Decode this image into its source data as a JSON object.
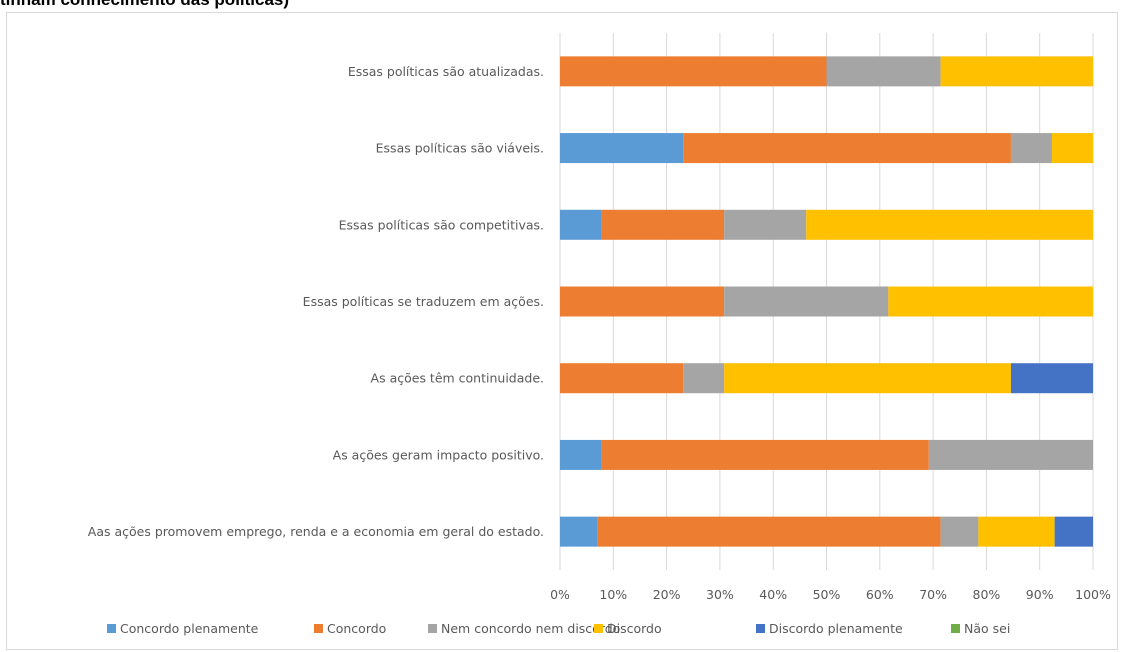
{
  "header": {
    "title": "tinham conhecimento das políticas)"
  },
  "chart_data": {
    "type": "bar",
    "orientation": "horizontal",
    "stacked": "100%",
    "title": "tinham conhecimento das políticas)",
    "xlabel": "",
    "ylabel": "",
    "xlim": [
      0,
      100
    ],
    "grid": true,
    "legend_position": "bottom",
    "categories": [
      "Essas políticas são atualizadas.",
      "Essas políticas são viáveis.",
      "Essas políticas são competitivas.",
      "Essas políticas se traduzem em ações.",
      "As ações têm continuidade.",
      "As ações geram impacto positivo.",
      "Aas ações promovem emprego, renda e a economia em geral do estado."
    ],
    "x_ticks": [
      "0%",
      "10%",
      "20%",
      "30%",
      "40%",
      "50%",
      "60%",
      "70%",
      "80%",
      "90%",
      "100%"
    ],
    "series": [
      {
        "name": "Concordo plenamente",
        "color": "#5b9bd5",
        "values": [
          0,
          23.1,
          7.7,
          0,
          0,
          7.7,
          7.1
        ]
      },
      {
        "name": "Concordo",
        "color": "#ed7d31",
        "values": [
          50,
          61.5,
          23.1,
          30.8,
          23.1,
          61.5,
          64.3
        ]
      },
      {
        "name": "Nem concordo nem discordo",
        "color": "#a5a5a5",
        "values": [
          21.4,
          7.7,
          15.4,
          30.8,
          7.7,
          30.8,
          7.1
        ]
      },
      {
        "name": "Discordo",
        "color": "#ffc000",
        "values": [
          28.6,
          7.7,
          53.8,
          38.4,
          53.8,
          0,
          14.3
        ]
      },
      {
        "name": "Discordo plenamente",
        "color": "#4472c4",
        "values": [
          0,
          0,
          0,
          0,
          15.4,
          0,
          7.2
        ]
      },
      {
        "name": "Não sei",
        "color": "#70ad47",
        "values": [
          0,
          0,
          0,
          0,
          0,
          0,
          0
        ]
      }
    ]
  }
}
